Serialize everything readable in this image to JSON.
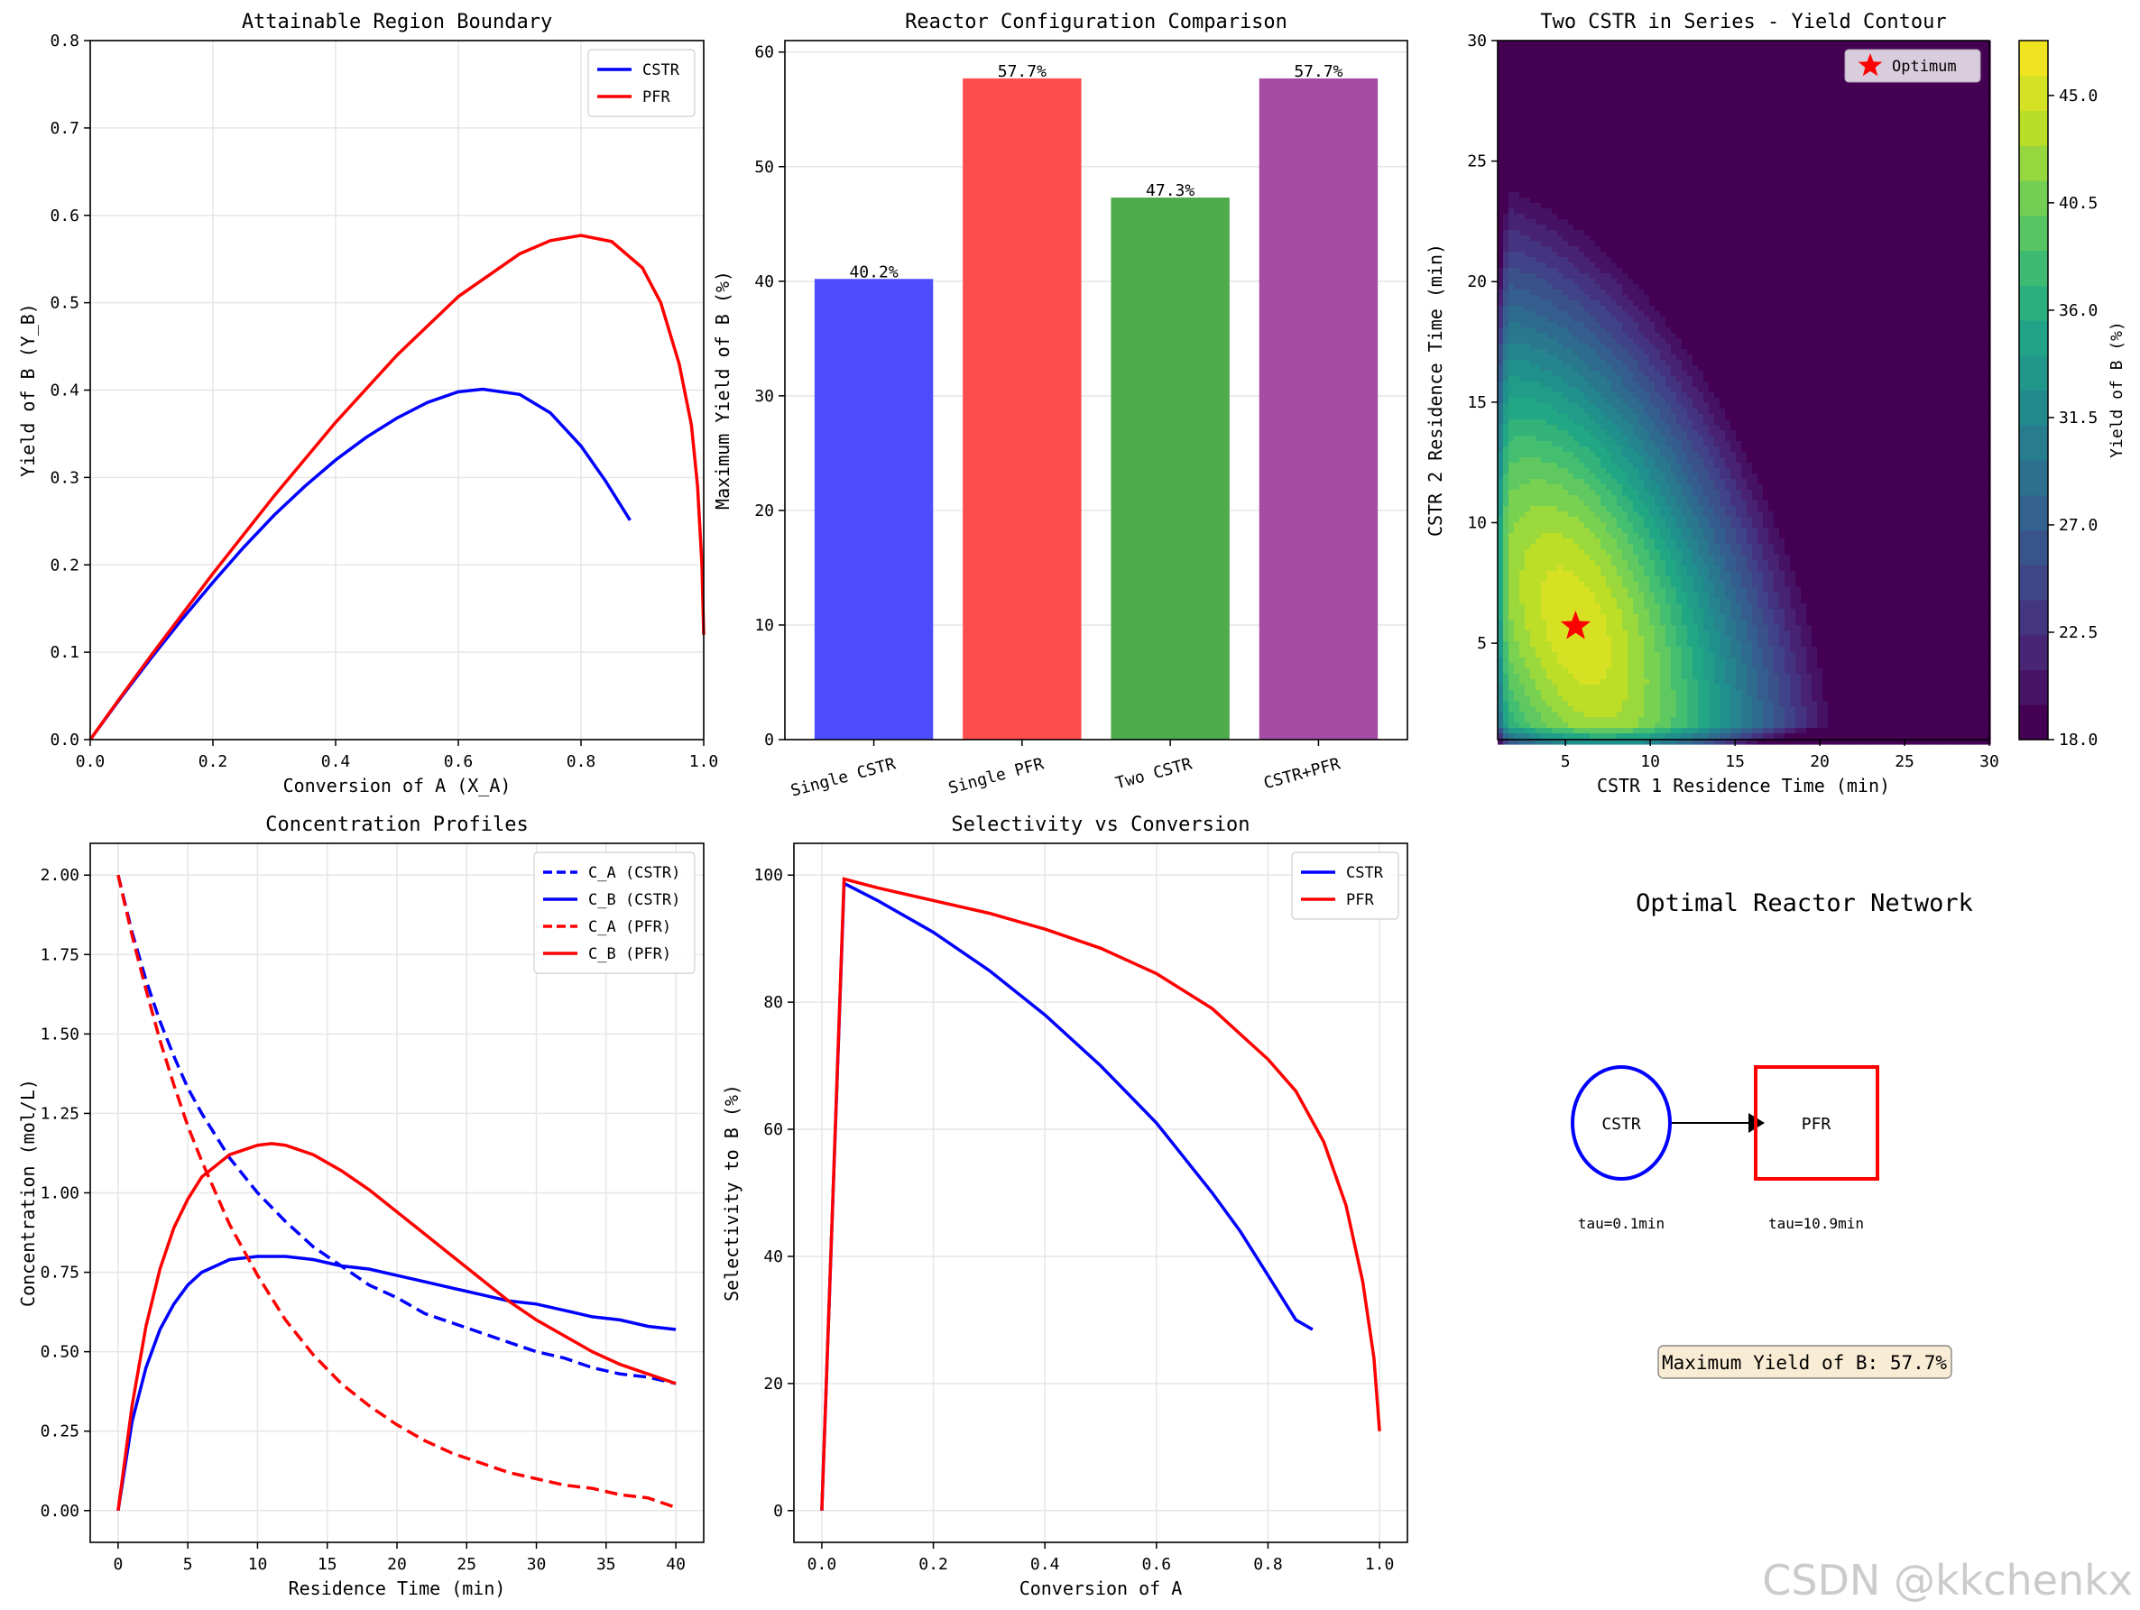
{
  "watermark": "CSDN @kkchenkx",
  "colors": {
    "cstr": "#0000ff",
    "pfr": "#ff0000",
    "bar_cstr": "#4d4dff",
    "bar_pfr": "#ff4d4d",
    "bar_two": "#4daa4d",
    "bar_mix": "#a54ca5"
  },
  "chart_data": [
    {
      "type": "line",
      "title": "Attainable Region Boundary",
      "xlabel": "Conversion of A (X_A)",
      "ylabel": "Yield of B (Y_B)",
      "xlim": [
        0,
        1.0
      ],
      "ylim": [
        0,
        0.8
      ],
      "xticks": [
        "0.0",
        "0.2",
        "0.4",
        "0.6",
        "0.8",
        "1.0"
      ],
      "yticks": [
        "0.0",
        "0.1",
        "0.2",
        "0.3",
        "0.4",
        "0.5",
        "0.6",
        "0.7",
        "0.8"
      ],
      "legend": "top-right",
      "grid": true,
      "series": [
        {
          "name": "CSTR",
          "color": "#0000ff",
          "x": [
            0,
            0.05,
            0.1,
            0.15,
            0.2,
            0.25,
            0.3,
            0.35,
            0.4,
            0.45,
            0.5,
            0.55,
            0.6,
            0.64,
            0.7,
            0.75,
            0.8,
            0.84,
            0.88
          ],
          "y": [
            0,
            0.048,
            0.094,
            0.138,
            0.18,
            0.22,
            0.257,
            0.29,
            0.32,
            0.346,
            0.368,
            0.386,
            0.398,
            0.401,
            0.395,
            0.374,
            0.336,
            0.296,
            0.251
          ]
        },
        {
          "name": "PFR",
          "color": "#ff0000",
          "x": [
            0,
            0.05,
            0.1,
            0.2,
            0.3,
            0.4,
            0.5,
            0.6,
            0.7,
            0.75,
            0.8,
            0.85,
            0.9,
            0.93,
            0.96,
            0.98,
            0.99,
            0.997,
            1.0
          ],
          "y": [
            0,
            0.049,
            0.097,
            0.19,
            0.279,
            0.363,
            0.44,
            0.507,
            0.556,
            0.571,
            0.577,
            0.57,
            0.54,
            0.5,
            0.43,
            0.36,
            0.29,
            0.2,
            0.12
          ]
        }
      ]
    },
    {
      "type": "bar",
      "title": "Reactor Configuration Comparison",
      "ylabel": "Maximum Yield of B (%)",
      "categories": [
        "Single CSTR",
        "Single PFR",
        "Two CSTR",
        "CSTR+PFR"
      ],
      "values": [
        40.2,
        57.7,
        47.3,
        57.7
      ],
      "labels": [
        "40.2%",
        "57.7%",
        "47.3%",
        "57.7%"
      ],
      "colors": [
        "#4d4dff",
        "#ff4d4d",
        "#4daa4d",
        "#a54ca5"
      ],
      "ylim": [
        0,
        61
      ],
      "yticks": [
        "0",
        "10",
        "20",
        "30",
        "40",
        "50",
        "60"
      ],
      "grid": true
    },
    {
      "type": "heatmap",
      "title": "Two CSTR in Series - Yield Contour",
      "xlabel": "CSTR 1 Residence Time (min)",
      "ylabel": "CSTR 2 Residence Time (min)",
      "xlim": [
        1,
        30
      ],
      "ylim": [
        1,
        30
      ],
      "xticks": [
        "5",
        "10",
        "15",
        "20",
        "25",
        "30"
      ],
      "yticks": [
        "5",
        "10",
        "15",
        "20",
        "25",
        "30"
      ],
      "colorbar_label": "Yield of B (%)",
      "colorbar_range": [
        18.0,
        47.3
      ],
      "colorbar_ticks": [
        "18.0",
        "22.5",
        "27.0",
        "31.5",
        "36.0",
        "40.5",
        "45.0"
      ],
      "optimum": {
        "x": 5.6,
        "y": 5.7,
        "label": "Optimum"
      },
      "legend": "top-right"
    },
    {
      "type": "line",
      "title": "Concentration Profiles",
      "xlabel": "Residence Time (min)",
      "ylabel": "Concentration (mol/L)",
      "xlim": [
        -2,
        42
      ],
      "ylim": [
        -0.1,
        2.1
      ],
      "xticks": [
        "0",
        "5",
        "10",
        "15",
        "20",
        "25",
        "30",
        "35",
        "40"
      ],
      "yticks": [
        "0.00",
        "0.25",
        "0.50",
        "0.75",
        "1.00",
        "1.25",
        "1.50",
        "1.75",
        "2.00"
      ],
      "legend": "top-right",
      "grid": true,
      "series": [
        {
          "name": "C_A (CSTR)",
          "color": "#0000ff",
          "dashed": true,
          "x": [
            0,
            1,
            2,
            3,
            4,
            5,
            6,
            8,
            10,
            12,
            14,
            16,
            18,
            20,
            22,
            24,
            26,
            28,
            30,
            32,
            34,
            36,
            38,
            40
          ],
          "y": [
            2.0,
            1.82,
            1.67,
            1.54,
            1.43,
            1.33,
            1.25,
            1.11,
            1.0,
            0.91,
            0.83,
            0.77,
            0.71,
            0.67,
            0.62,
            0.59,
            0.56,
            0.53,
            0.5,
            0.48,
            0.45,
            0.43,
            0.42,
            0.4
          ]
        },
        {
          "name": "C_B (CSTR)",
          "color": "#0000ff",
          "x": [
            0,
            1,
            2,
            3,
            4,
            5,
            6,
            8,
            10,
            12,
            14,
            16,
            18,
            20,
            22,
            24,
            26,
            28,
            30,
            32,
            34,
            36,
            38,
            40
          ],
          "y": [
            0,
            0.28,
            0.45,
            0.57,
            0.65,
            0.71,
            0.75,
            0.79,
            0.8,
            0.8,
            0.79,
            0.77,
            0.76,
            0.74,
            0.72,
            0.7,
            0.68,
            0.66,
            0.65,
            0.63,
            0.61,
            0.6,
            0.58,
            0.57
          ]
        },
        {
          "name": "C_A (PFR)",
          "color": "#ff0000",
          "dashed": true,
          "x": [
            0,
            1,
            2,
            3,
            4,
            5,
            6,
            8,
            10,
            12,
            14,
            16,
            18,
            20,
            22,
            24,
            26,
            28,
            30,
            32,
            34,
            36,
            38,
            40
          ],
          "y": [
            2.0,
            1.81,
            1.64,
            1.48,
            1.34,
            1.21,
            1.1,
            0.9,
            0.74,
            0.6,
            0.49,
            0.4,
            0.33,
            0.27,
            0.22,
            0.18,
            0.15,
            0.12,
            0.1,
            0.08,
            0.07,
            0.05,
            0.04,
            0.01
          ]
        },
        {
          "name": "C_B (PFR)",
          "color": "#ff0000",
          "x": [
            0,
            1,
            2,
            3,
            4,
            5,
            6,
            8,
            10,
            11,
            12,
            14,
            16,
            18,
            20,
            22,
            24,
            26,
            28,
            30,
            32,
            34,
            36,
            38,
            40
          ],
          "y": [
            0,
            0.33,
            0.58,
            0.76,
            0.89,
            0.98,
            1.05,
            1.12,
            1.15,
            1.155,
            1.15,
            1.12,
            1.07,
            1.01,
            0.94,
            0.87,
            0.8,
            0.73,
            0.66,
            0.6,
            0.55,
            0.5,
            0.46,
            0.43,
            0.4
          ]
        }
      ]
    },
    {
      "type": "line",
      "title": "Selectivity vs Conversion",
      "xlabel": "Conversion of A",
      "ylabel": "Selectivity to B (%)",
      "xlim": [
        -0.05,
        1.05
      ],
      "ylim": [
        -5,
        105
      ],
      "xticks": [
        "0.0",
        "0.2",
        "0.4",
        "0.6",
        "0.8",
        "1.0"
      ],
      "yticks": [
        "0",
        "20",
        "40",
        "60",
        "80",
        "100"
      ],
      "legend": "top-right",
      "grid": true,
      "series": [
        {
          "name": "CSTR",
          "color": "#0000ff",
          "x": [
            0,
            0.04,
            0.1,
            0.2,
            0.3,
            0.4,
            0.5,
            0.6,
            0.7,
            0.75,
            0.8,
            0.85,
            0.88
          ],
          "y": [
            0,
            98.7,
            96,
            91,
            85,
            78,
            70,
            61,
            50,
            44,
            37,
            30,
            28.5
          ]
        },
        {
          "name": "PFR",
          "color": "#ff0000",
          "x": [
            0,
            0.04,
            0.1,
            0.2,
            0.3,
            0.4,
            0.5,
            0.6,
            0.7,
            0.8,
            0.85,
            0.9,
            0.94,
            0.97,
            0.99,
            1.0
          ],
          "y": [
            0,
            99.4,
            98,
            96,
            94,
            91.5,
            88.5,
            84.5,
            79,
            71,
            66,
            58,
            48,
            36,
            24,
            12.5
          ]
        }
      ]
    }
  ],
  "network": {
    "title": "Optimal Reactor Network",
    "cstr_label": "CSTR",
    "pfr_label": "PFR",
    "cstr_tau": "tau=0.1min",
    "pfr_tau": "tau=10.9min",
    "summary": "Maximum Yield of B: 57.7%"
  }
}
